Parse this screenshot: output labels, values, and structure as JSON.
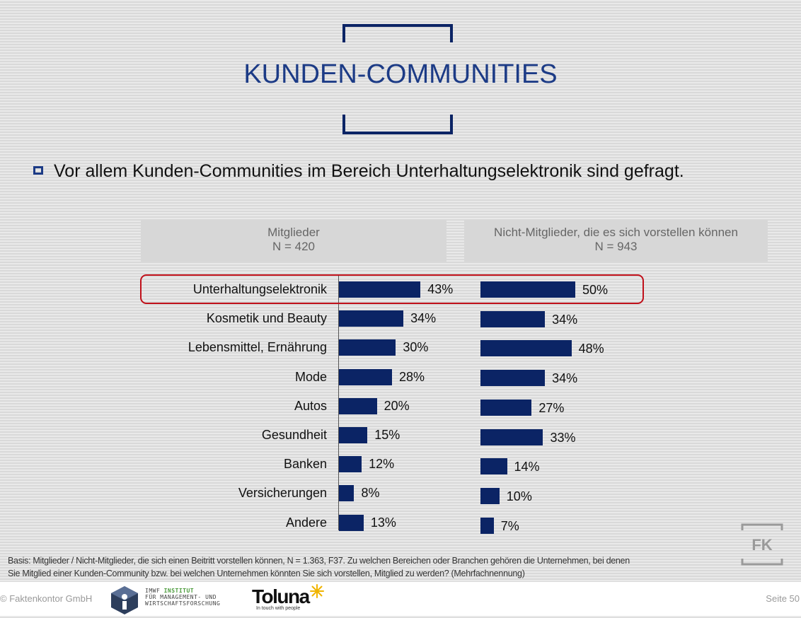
{
  "slide": {
    "title": "KUNDEN-COMMUNITIES",
    "headline": "Vor allem Kunden-Communities im Bereich Unterhaltungselektronik sind gefragt."
  },
  "chart_data": [
    {
      "type": "bar",
      "orientation": "horizontal",
      "header": "Mitglieder",
      "sample": "N = 420",
      "categories": [
        "Unterhaltungselektronik",
        "Kosmetik und Beauty",
        "Lebensmittel, Ernährung",
        "Mode",
        "Autos",
        "Gesundheit",
        "Banken",
        "Versicherungen",
        "Andere"
      ],
      "values": [
        43,
        34,
        30,
        28,
        20,
        15,
        12,
        8,
        13
      ],
      "value_suffix": "%",
      "bar_color": "#0b2465",
      "highlighted_category": "Unterhaltungselektronik"
    },
    {
      "type": "bar",
      "orientation": "horizontal",
      "header": "Nicht-Mitglieder, die es sich vorstellen können",
      "sample": "N = 943",
      "categories": [
        "Unterhaltungselektronik",
        "Kosmetik und Beauty",
        "Lebensmittel, Ernährung",
        "Mode",
        "Autos",
        "Gesundheit",
        "Banken",
        "Versicherungen",
        "Andere"
      ],
      "values": [
        50,
        34,
        48,
        34,
        27,
        33,
        14,
        10,
        7
      ],
      "value_suffix": "%",
      "bar_color": "#0b2465",
      "highlighted_category": "Unterhaltungselektronik"
    }
  ],
  "footnote": {
    "line1": "Basis: Mitglieder / Nicht-Mitglieder, die sich einen Beitritt vorstellen können, N = 1.363, F37. Zu welchen Bereichen oder Branchen gehören die Unternehmen, bei denen",
    "line2": "Sie Mitglied einer Kunden-Community bzw. bei welchen Unternehmen könnten Sie sich vorstellen, Mitglied zu werden? (Mehrfachnennung)"
  },
  "footer": {
    "copyright": "© Faktenkontor GmbH",
    "page": "Seite 50",
    "imwf_line1_a": "IMWF",
    "imwf_line1_b": "INSTITUT",
    "imwf_line2": "FÜR MANAGEMENT- UND",
    "imwf_line3": "WIRTSCHAFTSFORSCHUNG",
    "toluna_name": "Toluna",
    "toluna_tagline": "In touch with people",
    "fk_logo_text": "FK"
  },
  "colors": {
    "accent": "#1c3b86",
    "bar": "#0b2465",
    "highlight_border": "#c0101a"
  }
}
